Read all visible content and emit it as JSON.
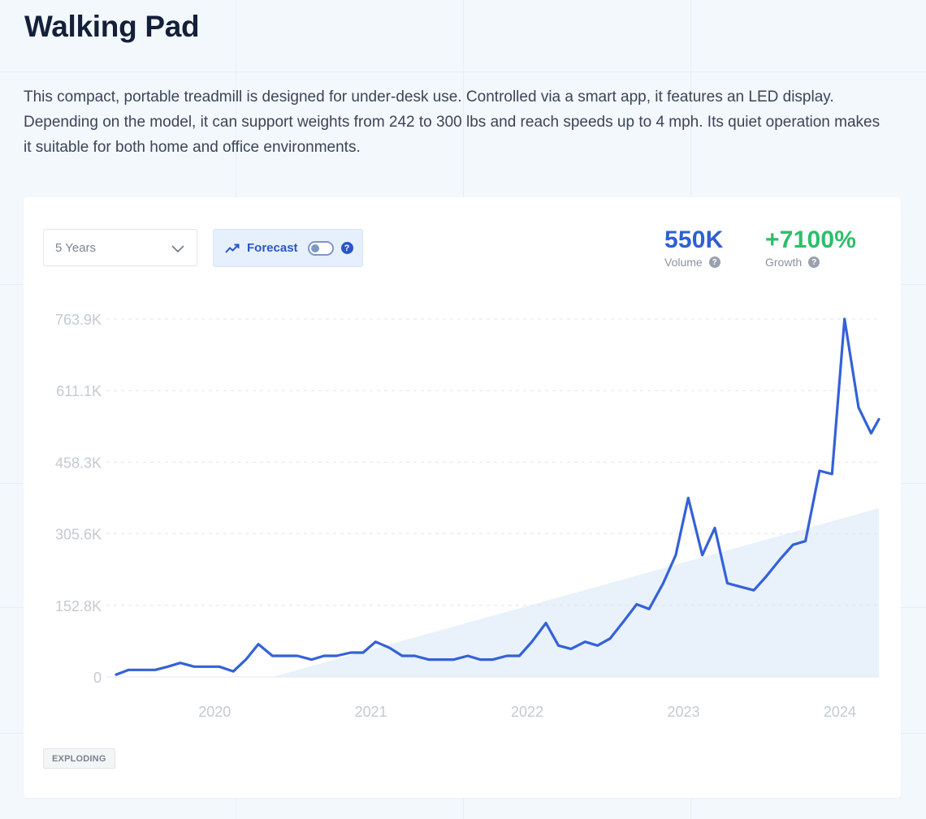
{
  "title": "Walking Pad",
  "description": "This compact, portable treadmill is designed for under-desk use. Controlled via a smart app, it features an LED display. Depending on the model, it can support weights from 242 to 300 lbs and reach speeds up to 4 mph. Its quiet operation makes it suitable for both home and office environments.",
  "controls": {
    "range_select": "5 Years",
    "forecast_label": "Forecast",
    "forecast_enabled": false
  },
  "stats": {
    "volume": {
      "value": "550K",
      "label": "Volume",
      "color": "#2f5fd0"
    },
    "growth": {
      "value": "+7100%",
      "label": "Growth",
      "color": "#2bbf6a"
    }
  },
  "badge": "EXPLODING",
  "colors": {
    "line": "#3462d6",
    "trend_fill": "#e9f1fb"
  },
  "chart_data": {
    "type": "line",
    "title": "",
    "xlabel": "",
    "ylabel": "",
    "ylim": [
      0,
      763900
    ],
    "y_ticks": [
      "0",
      "152.8K",
      "305.6K",
      "458.3K",
      "611.1K",
      "763.9K"
    ],
    "y_tick_values": [
      0,
      152800,
      305600,
      458300,
      611100,
      763900
    ],
    "x_ticks": [
      "2020",
      "2021",
      "2022",
      "2023",
      "2024"
    ],
    "x_tick_values": [
      2020.0,
      2021.0,
      2022.0,
      2023.0,
      2024.0
    ],
    "x_range": [
      2019.37,
      2024.25
    ],
    "grid": true,
    "series": [
      {
        "x": [
          2019.37,
          2019.45,
          2019.53,
          2019.62,
          2019.7,
          2019.78,
          2019.87,
          2019.95,
          2020.03,
          2020.12,
          2020.2,
          2020.28,
          2020.37,
          2020.45,
          2020.53,
          2020.62,
          2020.7,
          2020.78,
          2020.87,
          2020.95,
          2021.03,
          2021.12,
          2021.2,
          2021.28,
          2021.37,
          2021.45,
          2021.53,
          2021.62,
          2021.7,
          2021.78,
          2021.87,
          2021.95,
          2022.03,
          2022.12,
          2022.2,
          2022.28,
          2022.37,
          2022.45,
          2022.53,
          2022.62,
          2022.7,
          2022.78,
          2022.87,
          2022.95,
          2023.03,
          2023.12,
          2023.2,
          2023.28,
          2023.37,
          2023.45,
          2023.53,
          2023.62,
          2023.7,
          2023.78,
          2023.87,
          2023.95,
          2024.03,
          2024.12,
          2024.2,
          2024.25
        ],
        "values": [
          5000,
          15000,
          15000,
          15000,
          22000,
          30000,
          22000,
          22000,
          22000,
          12000,
          37000,
          70000,
          45000,
          45000,
          45000,
          37000,
          45000,
          45000,
          52000,
          52000,
          75000,
          62000,
          45000,
          45000,
          37000,
          37000,
          37000,
          45000,
          37000,
          37000,
          45000,
          45000,
          75000,
          115000,
          67000,
          60000,
          75000,
          67000,
          82000,
          120000,
          155000,
          145000,
          200000,
          260000,
          382000,
          260000,
          318000,
          200000,
          192000,
          185000,
          215000,
          252000,
          282000,
          290000,
          440000,
          433000,
          763900,
          575000,
          520000,
          550000
        ]
      }
    ],
    "forecast_band": {
      "x": [
        2020.37,
        2024.25
      ],
      "values": [
        0,
        360000
      ]
    }
  }
}
